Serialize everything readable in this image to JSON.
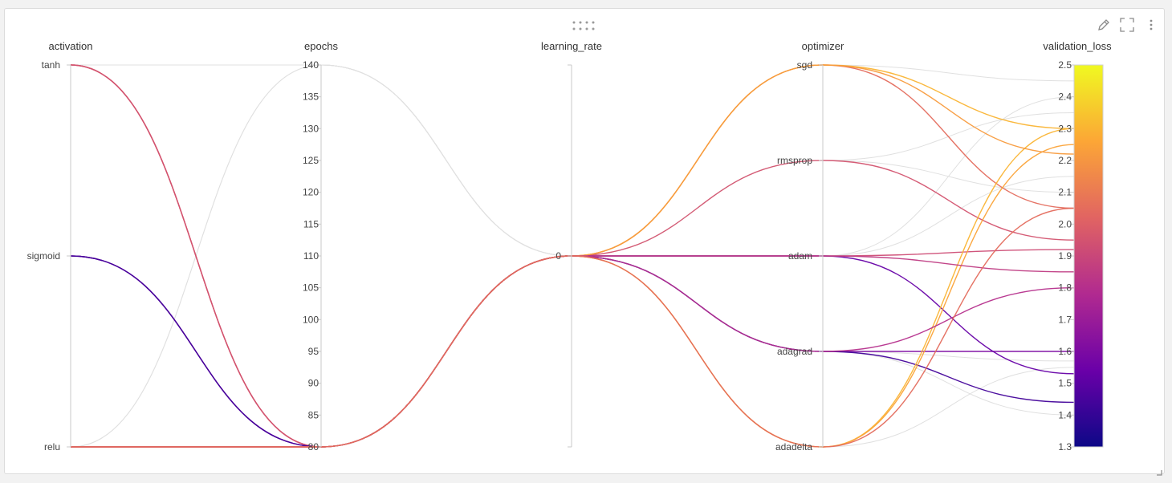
{
  "toolbar": {
    "drag_icon": "drag-handle-icon",
    "edit_icon": "pencil-icon",
    "fullscreen_icon": "fullscreen-icon",
    "menu_icon": "more-vertical-icon"
  },
  "chart_data": {
    "type": "parallel_coordinates",
    "axes": [
      {
        "name": "activation",
        "kind": "categorical",
        "categories": [
          "tanh",
          "sigmoid",
          "relu"
        ]
      },
      {
        "name": "epochs",
        "kind": "numeric",
        "range": [
          80,
          140
        ],
        "ticks": [
          80,
          85,
          90,
          95,
          100,
          105,
          110,
          115,
          120,
          125,
          130,
          135,
          140
        ]
      },
      {
        "name": "learning_rate",
        "kind": "categorical",
        "categories": [
          "0"
        ]
      },
      {
        "name": "optimizer",
        "kind": "categorical",
        "categories": [
          "sgd",
          "rmsprop",
          "adam",
          "adagrad",
          "adadelta"
        ]
      },
      {
        "name": "validation_loss",
        "kind": "numeric",
        "range": [
          1.3,
          2.5
        ],
        "ticks": [
          1.3,
          1.4,
          1.5,
          1.6,
          1.7,
          1.8,
          1.9,
          2.0,
          2.1,
          2.2,
          2.3,
          2.4,
          2.5
        ],
        "tick_labels": [
          "1.3",
          "1.4",
          "1.5",
          "1.6",
          "1.7",
          "1.8",
          "1.9",
          "2.0",
          "2.1",
          "2.2",
          "2.3",
          "2.4",
          "2.5"
        ]
      }
    ],
    "colorscale": {
      "name": "plasma",
      "range": [
        1.3,
        2.5
      ],
      "stops": [
        "#0d0887",
        "#6a00a8",
        "#b12a90",
        "#e16462",
        "#fca636",
        "#f0f921"
      ]
    },
    "runs": [
      {
        "activation": "tanh",
        "epochs": 80,
        "learning_rate": "0",
        "optimizer": "sgd",
        "validation_loss": 2.05
      },
      {
        "activation": "tanh",
        "epochs": 80,
        "learning_rate": "0",
        "optimizer": "adam",
        "validation_loss": 1.92
      },
      {
        "activation": "tanh",
        "epochs": 80,
        "learning_rate": "0",
        "optimizer": "rmsprop",
        "validation_loss": 1.95
      },
      {
        "activation": "sigmoid",
        "epochs": 80,
        "learning_rate": "0",
        "optimizer": "adagrad",
        "validation_loss": 1.6
      },
      {
        "activation": "sigmoid",
        "epochs": 80,
        "learning_rate": "0",
        "optimizer": "adam",
        "validation_loss": 1.53
      },
      {
        "activation": "sigmoid",
        "epochs": 80,
        "learning_rate": "0",
        "optimizer": "adagrad",
        "validation_loss": 1.44
      },
      {
        "activation": "relu",
        "epochs": 80,
        "learning_rate": "0",
        "optimizer": "adadelta",
        "validation_loss": 2.3
      },
      {
        "activation": "relu",
        "epochs": 80,
        "learning_rate": "0",
        "optimizer": "adadelta",
        "validation_loss": 2.25
      },
      {
        "activation": "relu",
        "epochs": 80,
        "learning_rate": "0",
        "optimizer": "sgd",
        "validation_loss": 2.3
      },
      {
        "activation": "relu",
        "epochs": 80,
        "learning_rate": "0",
        "optimizer": "adagrad",
        "validation_loss": 1.8
      },
      {
        "activation": "relu",
        "epochs": 80,
        "learning_rate": "0",
        "optimizer": "sgd",
        "validation_loss": 2.22
      },
      {
        "activation": "relu",
        "epochs": 80,
        "learning_rate": "0",
        "optimizer": "adam",
        "validation_loss": 1.85
      },
      {
        "activation": "relu",
        "epochs": 80,
        "learning_rate": "0",
        "optimizer": "adadelta",
        "validation_loss": 2.05
      },
      {
        "activation": "tanh",
        "epochs": 140,
        "learning_rate": "0",
        "optimizer": "sgd",
        "validation_loss": 2.45,
        "inactive": true
      },
      {
        "activation": "relu",
        "epochs": 140,
        "learning_rate": "0",
        "optimizer": "rmsprop",
        "validation_loss": 2.35,
        "inactive": true
      },
      {
        "activation": "tanh",
        "epochs": 140,
        "learning_rate": "0",
        "optimizer": "adam",
        "validation_loss": 2.15,
        "inactive": true
      },
      {
        "activation": "tanh",
        "epochs": 140,
        "learning_rate": "0",
        "optimizer": "adagrad",
        "validation_loss": 1.4,
        "inactive": true
      },
      {
        "activation": "tanh",
        "epochs": 140,
        "learning_rate": "0",
        "optimizer": "adadelta",
        "validation_loss": 1.55,
        "inactive": true
      },
      {
        "activation": "relu",
        "epochs": 140,
        "learning_rate": "0",
        "optimizer": "rmsprop",
        "validation_loss": 2.1,
        "inactive": true
      },
      {
        "activation": "tanh",
        "epochs": 140,
        "learning_rate": "0",
        "optimizer": "adam",
        "validation_loss": 2.4,
        "inactive": true
      },
      {
        "activation": "tanh",
        "epochs": 140,
        "learning_rate": "0",
        "optimizer": "adagrad",
        "validation_loss": 1.57,
        "inactive": true
      }
    ]
  }
}
